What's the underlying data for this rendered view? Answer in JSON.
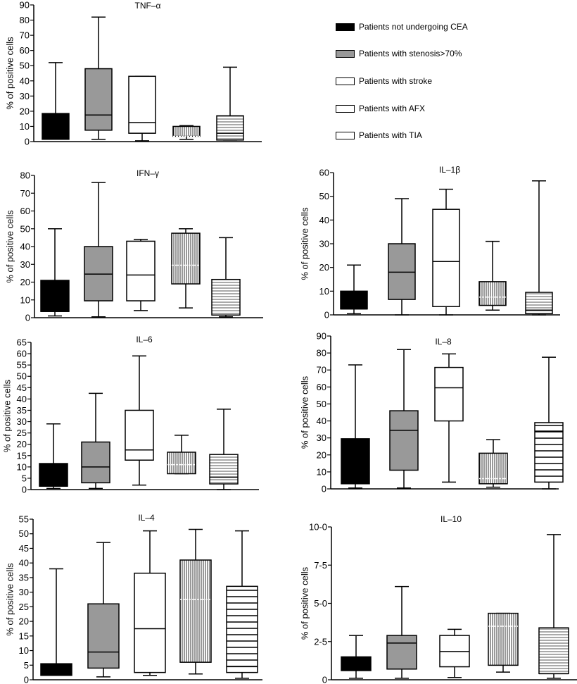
{
  "legend": [
    {
      "label": "Patients not undergoing CEA",
      "fill": "#000000",
      "pattern": "solid"
    },
    {
      "label": "Patients with stenosis>70%",
      "fill": "#999999",
      "pattern": "solid"
    },
    {
      "label": "Patients with stroke",
      "fill": "#ffffff",
      "pattern": "none"
    },
    {
      "label": "Patients with AFX",
      "fill": "#ffffff",
      "pattern": "none"
    },
    {
      "label": "Patients with TIA",
      "fill": "#ffffff",
      "pattern": "none"
    }
  ],
  "chart_data": [
    {
      "type": "box",
      "title": "TNF–α",
      "ylabel": "% of positive cells",
      "ylim": [
        0,
        90
      ],
      "yticks": [
        0,
        10,
        20,
        30,
        40,
        50,
        60,
        70,
        80,
        90
      ],
      "ytick_labels": [
        "0",
        "10",
        "20",
        "30",
        "40",
        "50",
        "60",
        "70",
        "80",
        "90"
      ],
      "groups": [
        "Patients not undergoing CEA",
        "Patients with stenosis>70%",
        "Patients with stroke",
        "Patients with AFX",
        "Patients with TIA"
      ],
      "boxes": [
        {
          "min": 1.5,
          "q1": 1.5,
          "median": 1.5,
          "q3": 18.5,
          "max": 52
        },
        {
          "min": 1.5,
          "q1": 7.5,
          "median": 17.5,
          "q3": 48,
          "max": 82
        },
        {
          "min": 0.5,
          "q1": 5.5,
          "median": 12.5,
          "q3": 43,
          "max": 43
        },
        {
          "min": 1.5,
          "q1": 3.5,
          "median": 3.5,
          "q3": 10,
          "max": 10.5
        },
        {
          "min": 1,
          "q1": 1,
          "median": 5.5,
          "q3": 17,
          "max": 49
        }
      ]
    },
    {
      "type": "box",
      "title": "IFN–γ",
      "ylabel": "% of positive cells",
      "ylim": [
        0,
        80
      ],
      "yticks": [
        0,
        10,
        20,
        30,
        40,
        50,
        60,
        70,
        80
      ],
      "ytick_labels": [
        "0",
        "10",
        "20",
        "30",
        "40",
        "50",
        "60",
        "70",
        "80"
      ],
      "groups": [
        "Patients not undergoing CEA",
        "Patients with stenosis>70%",
        "Patients with stroke",
        "Patients with AFX",
        "Patients with TIA"
      ],
      "boxes": [
        {
          "min": 1,
          "q1": 3.5,
          "median": 3.5,
          "q3": 21,
          "max": 50
        },
        {
          "min": 0.5,
          "q1": 9.5,
          "median": 24.5,
          "q3": 40,
          "max": 76
        },
        {
          "min": 4,
          "q1": 9.5,
          "median": 24,
          "q3": 43,
          "max": 44
        },
        {
          "min": 5.5,
          "q1": 19,
          "median": 29.5,
          "q3": 47.5,
          "max": 50
        },
        {
          "min": 0.5,
          "q1": 1.5,
          "median": 1.5,
          "q3": 21.5,
          "max": 45
        }
      ]
    },
    {
      "type": "box",
      "title": "IL–1β",
      "ylabel": "% of positive cells",
      "ylim": [
        0,
        60
      ],
      "yticks": [
        0,
        10,
        20,
        30,
        40,
        50,
        60
      ],
      "ytick_labels": [
        "0",
        "10",
        "20",
        "30",
        "40",
        "50",
        "60"
      ],
      "groups": [
        "Patients not undergoing CEA",
        "Patients with stenosis>70%",
        "Patients with stroke",
        "Patients with AFX",
        "Patients with TIA"
      ],
      "boxes": [
        {
          "min": 0.5,
          "q1": 2.5,
          "median": 2.5,
          "q3": 10,
          "max": 21
        },
        {
          "min": 0,
          "q1": 6.5,
          "median": 18,
          "q3": 30,
          "max": 49
        },
        {
          "min": 0,
          "q1": 3.5,
          "median": 22.5,
          "q3": 44.5,
          "max": 53
        },
        {
          "min": 2,
          "q1": 4,
          "median": 7.5,
          "q3": 14,
          "max": 31
        },
        {
          "min": 0,
          "q1": 0.5,
          "median": 2,
          "q3": 9.5,
          "max": 56.5
        }
      ]
    },
    {
      "type": "box",
      "title": "IL–6",
      "ylabel": "% of positive cells",
      "ylim": [
        0,
        65
      ],
      "yticks": [
        0,
        5,
        10,
        15,
        20,
        25,
        30,
        35,
        40,
        45,
        50,
        55,
        60,
        65
      ],
      "ytick_labels": [
        "0",
        "5",
        "10",
        "15",
        "20",
        "25",
        "30",
        "35",
        "40",
        "45",
        "50",
        "55",
        "60",
        "65"
      ],
      "groups": [
        "Patients not undergoing CEA",
        "Patients with stenosis>70%",
        "Patients with stroke",
        "Patients with AFX",
        "Patients with TIA"
      ],
      "boxes": [
        {
          "min": 0.5,
          "q1": 1.5,
          "median": 1.5,
          "q3": 11.5,
          "max": 29
        },
        {
          "min": 0.5,
          "q1": 3,
          "median": 10,
          "q3": 21,
          "max": 42.5
        },
        {
          "min": 2,
          "q1": 13,
          "median": 17.5,
          "q3": 35,
          "max": 59
        },
        {
          "min": 7,
          "q1": 7,
          "median": 11,
          "q3": 16.5,
          "max": 24
        },
        {
          "min": 0,
          "q1": 2.5,
          "median": 5.5,
          "q3": 15.5,
          "max": 35.5
        }
      ]
    },
    {
      "type": "box",
      "title": "IL–8",
      "ylabel": "% of positive cells",
      "ylim": [
        0,
        90
      ],
      "yticks": [
        0,
        10,
        20,
        30,
        40,
        50,
        60,
        70,
        80,
        90
      ],
      "ytick_labels": [
        "0",
        "10",
        "20",
        "30",
        "40",
        "50",
        "60",
        "70",
        "80",
        "90"
      ],
      "groups": [
        "Patients not undergoing CEA",
        "Patients with stenosis>70%",
        "Patients with stroke",
        "Patients with AFX",
        "Patients with TIA"
      ],
      "boxes": [
        {
          "min": 0.5,
          "q1": 3,
          "median": 3,
          "q3": 29.5,
          "max": 73
        },
        {
          "min": 0.5,
          "q1": 11,
          "median": 34.5,
          "q3": 46,
          "max": 82
        },
        {
          "min": 4,
          "q1": 40,
          "median": 59.5,
          "q3": 71.5,
          "max": 79.5
        },
        {
          "min": 1,
          "q1": 3,
          "median": 6,
          "q3": 21,
          "max": 29
        },
        {
          "min": 0,
          "q1": 4,
          "median": 34,
          "q3": 39,
          "max": 77.5
        }
      ]
    },
    {
      "type": "box",
      "title": "IL–4",
      "ylabel": "% of positive cells",
      "ylim": [
        0,
        55
      ],
      "yticks": [
        0,
        5,
        10,
        15,
        20,
        25,
        30,
        35,
        40,
        45,
        50,
        55
      ],
      "ytick_labels": [
        "0",
        "5",
        "10",
        "15",
        "20",
        "25",
        "30",
        "35",
        "40",
        "45",
        "50",
        "55"
      ],
      "groups": [
        "Patients not undergoing CEA",
        "Patients with stenosis>70%",
        "Patients with stroke",
        "Patients with AFX",
        "Patients with TIA"
      ],
      "boxes": [
        {
          "min": 1.5,
          "q1": 1.5,
          "median": 1.5,
          "q3": 5.5,
          "max": 38
        },
        {
          "min": 1,
          "q1": 4,
          "median": 9.5,
          "q3": 26,
          "max": 47
        },
        {
          "min": 1.5,
          "q1": 2.5,
          "median": 17.5,
          "q3": 36.5,
          "max": 51
        },
        {
          "min": 2,
          "q1": 6,
          "median": 27.5,
          "q3": 41,
          "max": 51.5
        },
        {
          "min": 0.5,
          "q1": 2.5,
          "median": 4.5,
          "q3": 32,
          "max": 51
        }
      ]
    },
    {
      "type": "box",
      "title": "IL–10",
      "ylabel": "% of positive cells",
      "ylim": [
        0,
        10
      ],
      "yticks": [
        0,
        2.5,
        5,
        7.5,
        10
      ],
      "ytick_labels": [
        "0",
        "2-5",
        "5-0",
        "7-5",
        "10-0"
      ],
      "groups": [
        "Patients not undergoing CEA",
        "Patients with stenosis>70%",
        "Patients with stroke",
        "Patients with AFX",
        "Patients with TIA"
      ],
      "boxes": [
        {
          "min": 0.1,
          "q1": 0.6,
          "median": 1.1,
          "q3": 1.5,
          "max": 2.9
        },
        {
          "min": 0.1,
          "q1": 0.7,
          "median": 2.4,
          "q3": 2.9,
          "max": 6.1
        },
        {
          "min": 0.15,
          "q1": 0.85,
          "median": 1.85,
          "q3": 2.9,
          "max": 3.3
        },
        {
          "min": 0.5,
          "q1": 0.95,
          "median": 3.5,
          "q3": 4.35,
          "max": 4.35
        },
        {
          "min": 0.1,
          "q1": 0.4,
          "median": 0.4,
          "q3": 3.4,
          "max": 9.5
        }
      ]
    }
  ]
}
